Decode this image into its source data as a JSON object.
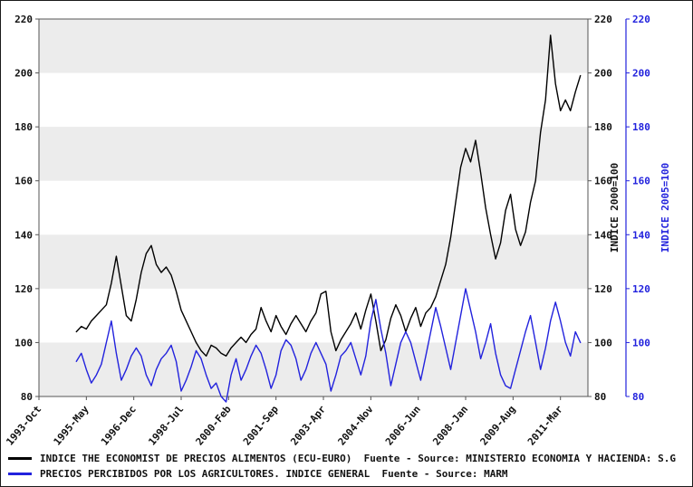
{
  "chart_data": {
    "type": "line",
    "title": "",
    "x_axis": {
      "unit": "month",
      "range_months": [
        0,
        220
      ],
      "ticks": [
        {
          "month": 0,
          "label": "1993-Oct"
        },
        {
          "month": 19,
          "label": "1995-May"
        },
        {
          "month": 38,
          "label": "1996-Dec"
        },
        {
          "month": 57,
          "label": "1998-Jul"
        },
        {
          "month": 76,
          "label": "2000-Feb"
        },
        {
          "month": 95,
          "label": "2001-Sep"
        },
        {
          "month": 114,
          "label": "2003-Apr"
        },
        {
          "month": 133,
          "label": "2004-Nov"
        },
        {
          "month": 152,
          "label": "2006-Jun"
        },
        {
          "month": 171,
          "label": "2008-Jan"
        },
        {
          "month": 190,
          "label": "2009-Aug"
        },
        {
          "month": 209,
          "label": "2011-Mar"
        }
      ]
    },
    "y_axis": {
      "min": 80,
      "max": 220,
      "step": 20,
      "right_axis_title": "INDICE 2000=100",
      "far_right_axis_title": "INDICE 2005=100"
    },
    "bands": {
      "color": "#ececec",
      "gray_band_starts": [
        80,
        120,
        160,
        200
      ]
    },
    "series": [
      {
        "name": "INDICE THE ECONOMIST DE PRECIOS ALIMENTOS (ECU-EURO)",
        "color": "#000000",
        "axis": "INDICE 2000=100",
        "start_month": 15,
        "step_months": 2,
        "values": [
          104,
          106,
          105,
          108,
          110,
          112,
          114,
          122,
          132,
          121,
          110,
          108,
          116,
          126,
          133,
          136,
          129,
          126,
          128,
          125,
          119,
          112,
          108,
          104,
          100,
          97,
          95,
          99,
          98,
          96,
          95,
          98,
          100,
          102,
          100,
          103,
          105,
          113,
          108,
          104,
          110,
          106,
          103,
          107,
          110,
          107,
          104,
          108,
          111,
          118,
          119,
          104,
          97,
          101,
          104,
          107,
          111,
          105,
          112,
          118,
          108,
          97,
          101,
          109,
          114,
          110,
          104,
          109,
          113,
          106,
          111,
          113,
          117,
          123,
          129,
          139,
          152,
          165,
          172,
          167,
          175,
          163,
          150,
          140,
          131,
          137,
          149,
          155,
          142,
          136,
          141,
          152,
          160,
          178,
          190,
          214,
          196,
          186,
          190,
          186,
          193,
          199
        ]
      },
      {
        "name": "PRECIOS PERCIBIDOS POR LOS AGRICULTORES. INDICE GENERAL",
        "color": "#2222dd",
        "axis": "INDICE 2005=100",
        "start_month": 15,
        "step_months": 2,
        "values": [
          93,
          96,
          90,
          85,
          88,
          92,
          100,
          108,
          96,
          86,
          90,
          95,
          98,
          95,
          88,
          84,
          90,
          94,
          96,
          99,
          93,
          82,
          86,
          91,
          97,
          94,
          88,
          83,
          85,
          80,
          78,
          88,
          94,
          86,
          90,
          95,
          99,
          96,
          90,
          83,
          88,
          97,
          101,
          99,
          94,
          86,
          90,
          96,
          100,
          96,
          92,
          82,
          88,
          95,
          97,
          100,
          94,
          88,
          95,
          108,
          116,
          105,
          96,
          84,
          92,
          100,
          104,
          100,
          93,
          86,
          95,
          104,
          113,
          106,
          98,
          90,
          100,
          110,
          120,
          112,
          104,
          94,
          100,
          107,
          96,
          88,
          84,
          83,
          90,
          97,
          104,
          110,
          100,
          90,
          98,
          108,
          115,
          108,
          100,
          95,
          104,
          100
        ]
      }
    ],
    "grid": "horizontal-bands",
    "legend_position": "bottom-left"
  },
  "legend": {
    "items": [
      {
        "label": "INDICE THE ECONOMIST DE PRECIOS ALIMENTOS (ECU-EURO)  Fuente - Source: MINISTERIO ECONOMIA Y HACIENDA: S.G",
        "color": "#000000"
      },
      {
        "label": "PRECIOS PERCIBIDOS POR LOS AGRICULTORES. INDICE GENERAL  Fuente - Source: MARM",
        "color": "#2222dd"
      }
    ]
  },
  "colors": {
    "black_series": "#000000",
    "blue_series": "#2222dd",
    "band_gray": "#ececec",
    "axis_line": "#555555",
    "tick_text": "#111111"
  }
}
